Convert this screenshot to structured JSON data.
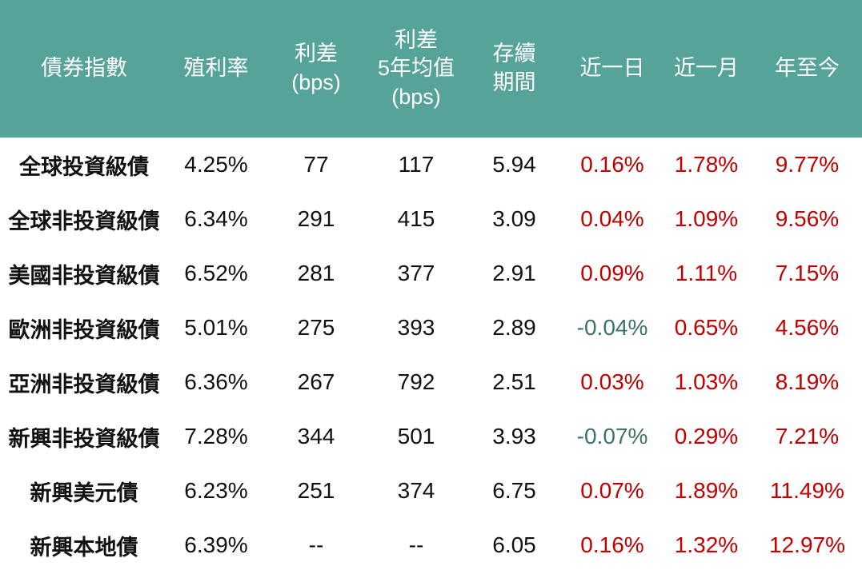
{
  "colors": {
    "header_bg": "#56A39A",
    "header_text": "#FFFFFF",
    "body_text": "#111111",
    "positive_change": "#C00000",
    "negative_change": "#3C7369",
    "page_bg": "#FFFFFF"
  },
  "chart_data": {
    "type": "table",
    "columns": [
      "債券指數",
      "殖利率",
      "利差\n(bps)",
      "利差\n5年均值\n(bps)",
      "存續\n期間",
      "近一日",
      "近一月",
      "年至今"
    ],
    "rows": [
      [
        "全球投資級債",
        "4.25%",
        "77",
        "117",
        "5.94",
        "0.16%",
        "1.78%",
        "9.77%"
      ],
      [
        "全球非投資級債",
        "6.34%",
        "291",
        "415",
        "3.09",
        "0.04%",
        "1.09%",
        "9.56%"
      ],
      [
        "美國非投資級債",
        "6.52%",
        "281",
        "377",
        "2.91",
        "0.09%",
        "1.11%",
        "7.15%"
      ],
      [
        "歐洲非投資級債",
        "5.01%",
        "275",
        "393",
        "2.89",
        "-0.04%",
        "0.65%",
        "4.56%"
      ],
      [
        "亞洲非投資級債",
        "6.36%",
        "267",
        "792",
        "2.51",
        "0.03%",
        "1.03%",
        "8.19%"
      ],
      [
        "新興非投資級債",
        "7.28%",
        "344",
        "501",
        "3.93",
        "-0.07%",
        "0.29%",
        "7.21%"
      ],
      [
        "新興美元債",
        "6.23%",
        "251",
        "374",
        "6.75",
        "0.07%",
        "1.89%",
        "11.49%"
      ],
      [
        "新興本地債",
        "6.39%",
        "--",
        "--",
        "6.05",
        "0.16%",
        "1.32%",
        "12.97%"
      ]
    ]
  }
}
